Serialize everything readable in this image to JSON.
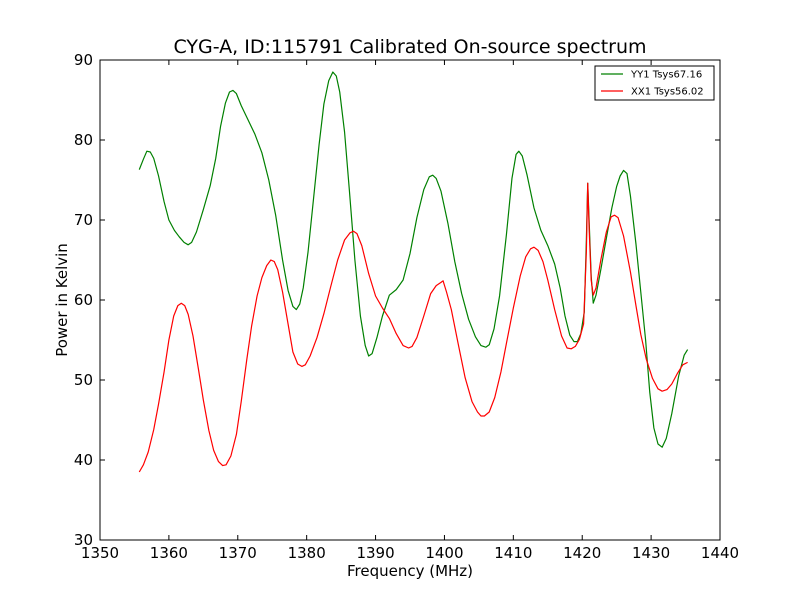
{
  "chart_data": {
    "type": "line",
    "title": "CYG-A, ID:115791 Calibrated On-source spectrum",
    "xlabel": "Frequency (MHz)",
    "ylabel": "Power in Kelvin",
    "xlim": [
      1350,
      1440
    ],
    "ylim": [
      30,
      90
    ],
    "xticks": [
      "1350",
      "1360",
      "1370",
      "1380",
      "1390",
      "1400",
      "1410",
      "1420",
      "1430",
      "1440"
    ],
    "yticks": [
      "30",
      "40",
      "50",
      "60",
      "70",
      "80",
      "90"
    ],
    "grid": false,
    "legend_position": "top-right",
    "series": [
      {
        "name": "YY1 Tsys67.16",
        "color": "#008000",
        "points": [
          [
            1355.7,
            76.3
          ],
          [
            1356.3,
            77.6
          ],
          [
            1356.8,
            78.6
          ],
          [
            1357.3,
            78.5
          ],
          [
            1357.8,
            77.7
          ],
          [
            1358.5,
            75.5
          ],
          [
            1359.3,
            72.3
          ],
          [
            1360.0,
            70.0
          ],
          [
            1360.8,
            68.7
          ],
          [
            1361.5,
            67.9
          ],
          [
            1362.2,
            67.2
          ],
          [
            1362.8,
            66.9
          ],
          [
            1363.3,
            67.2
          ],
          [
            1364.0,
            68.5
          ],
          [
            1365.0,
            71.3
          ],
          [
            1366.0,
            74.3
          ],
          [
            1366.8,
            77.7
          ],
          [
            1367.5,
            81.7
          ],
          [
            1368.2,
            84.6
          ],
          [
            1368.8,
            86.0
          ],
          [
            1369.3,
            86.2
          ],
          [
            1369.8,
            85.8
          ],
          [
            1370.5,
            84.3
          ],
          [
            1371.5,
            82.5
          ],
          [
            1372.5,
            80.7
          ],
          [
            1373.5,
            78.4
          ],
          [
            1374.5,
            75.0
          ],
          [
            1375.5,
            70.6
          ],
          [
            1376.5,
            65.0
          ],
          [
            1377.3,
            61.2
          ],
          [
            1378.0,
            59.2
          ],
          [
            1378.5,
            58.8
          ],
          [
            1379.0,
            59.5
          ],
          [
            1379.5,
            61.5
          ],
          [
            1380.2,
            66.0
          ],
          [
            1381.0,
            72.7
          ],
          [
            1381.8,
            79.4
          ],
          [
            1382.5,
            84.5
          ],
          [
            1383.2,
            87.4
          ],
          [
            1383.8,
            88.5
          ],
          [
            1384.3,
            88.0
          ],
          [
            1384.8,
            86.0
          ],
          [
            1385.5,
            81.0
          ],
          [
            1386.2,
            73.7
          ],
          [
            1387.0,
            65.0
          ],
          [
            1387.8,
            58.0
          ],
          [
            1388.5,
            54.3
          ],
          [
            1389.0,
            53.0
          ],
          [
            1389.5,
            53.3
          ],
          [
            1390.2,
            55.3
          ],
          [
            1391.0,
            58.0
          ],
          [
            1392.0,
            60.6
          ],
          [
            1393.0,
            61.3
          ],
          [
            1394.0,
            62.5
          ],
          [
            1395.0,
            65.8
          ],
          [
            1396.0,
            70.3
          ],
          [
            1397.0,
            73.8
          ],
          [
            1397.8,
            75.4
          ],
          [
            1398.3,
            75.6
          ],
          [
            1398.8,
            75.2
          ],
          [
            1399.5,
            73.6
          ],
          [
            1400.5,
            69.6
          ],
          [
            1401.5,
            64.8
          ],
          [
            1402.5,
            60.8
          ],
          [
            1403.5,
            57.6
          ],
          [
            1404.5,
            55.4
          ],
          [
            1405.3,
            54.3
          ],
          [
            1406.0,
            54.1
          ],
          [
            1406.5,
            54.4
          ],
          [
            1407.2,
            56.4
          ],
          [
            1408.0,
            60.5
          ],
          [
            1409.0,
            68.2
          ],
          [
            1409.8,
            75.2
          ],
          [
            1410.4,
            78.2
          ],
          [
            1410.8,
            78.6
          ],
          [
            1411.3,
            78.0
          ],
          [
            1412.0,
            75.6
          ],
          [
            1413.0,
            71.5
          ],
          [
            1414.0,
            68.7
          ],
          [
            1415.0,
            66.8
          ],
          [
            1416.0,
            64.5
          ],
          [
            1416.8,
            61.5
          ],
          [
            1417.5,
            58.0
          ],
          [
            1418.2,
            55.6
          ],
          [
            1418.8,
            54.8
          ],
          [
            1419.3,
            54.8
          ],
          [
            1419.8,
            55.8
          ],
          [
            1420.3,
            58.5
          ],
          [
            1420.6,
            67.5
          ],
          [
            1420.8,
            74.6
          ],
          [
            1421.0,
            70.0
          ],
          [
            1421.3,
            63.0
          ],
          [
            1421.6,
            59.6
          ],
          [
            1422.0,
            60.6
          ],
          [
            1422.7,
            63.8
          ],
          [
            1423.5,
            67.7
          ],
          [
            1424.3,
            71.5
          ],
          [
            1425.0,
            74.2
          ],
          [
            1425.5,
            75.5
          ],
          [
            1426.0,
            76.2
          ],
          [
            1426.5,
            75.8
          ],
          [
            1427.0,
            73.0
          ],
          [
            1427.8,
            67.0
          ],
          [
            1428.5,
            61.0
          ],
          [
            1429.2,
            55.0
          ],
          [
            1429.8,
            48.5
          ],
          [
            1430.4,
            44.0
          ],
          [
            1431.0,
            42.0
          ],
          [
            1431.6,
            41.6
          ],
          [
            1432.2,
            42.7
          ],
          [
            1433.0,
            45.8
          ],
          [
            1434.0,
            50.5
          ],
          [
            1434.8,
            53.1
          ],
          [
            1435.3,
            53.8
          ]
        ]
      },
      {
        "name": "XX1 Tsys56.02",
        "color": "#ff0000",
        "points": [
          [
            1355.7,
            38.5
          ],
          [
            1356.3,
            39.4
          ],
          [
            1357.0,
            41.0
          ],
          [
            1357.8,
            43.8
          ],
          [
            1358.5,
            47.0
          ],
          [
            1359.3,
            51.0
          ],
          [
            1360.0,
            55.0
          ],
          [
            1360.7,
            58.0
          ],
          [
            1361.3,
            59.3
          ],
          [
            1361.8,
            59.6
          ],
          [
            1362.3,
            59.3
          ],
          [
            1362.8,
            58.2
          ],
          [
            1363.5,
            55.5
          ],
          [
            1364.3,
            51.3
          ],
          [
            1365.0,
            47.5
          ],
          [
            1365.8,
            43.7
          ],
          [
            1366.5,
            41.2
          ],
          [
            1367.2,
            39.8
          ],
          [
            1367.8,
            39.3
          ],
          [
            1368.3,
            39.4
          ],
          [
            1369.0,
            40.5
          ],
          [
            1369.8,
            43.2
          ],
          [
            1370.5,
            47.3
          ],
          [
            1371.3,
            52.5
          ],
          [
            1372.0,
            56.7
          ],
          [
            1372.8,
            60.5
          ],
          [
            1373.5,
            62.8
          ],
          [
            1374.2,
            64.3
          ],
          [
            1374.8,
            65.0
          ],
          [
            1375.3,
            64.8
          ],
          [
            1375.8,
            63.8
          ],
          [
            1376.5,
            61.0
          ],
          [
            1377.3,
            57.0
          ],
          [
            1378.0,
            53.5
          ],
          [
            1378.7,
            52.0
          ],
          [
            1379.3,
            51.7
          ],
          [
            1379.8,
            51.9
          ],
          [
            1380.5,
            53.0
          ],
          [
            1381.5,
            55.3
          ],
          [
            1382.5,
            58.3
          ],
          [
            1383.5,
            61.7
          ],
          [
            1384.5,
            65.0
          ],
          [
            1385.5,
            67.5
          ],
          [
            1386.3,
            68.4
          ],
          [
            1386.8,
            68.6
          ],
          [
            1387.3,
            68.3
          ],
          [
            1388.0,
            66.8
          ],
          [
            1389.0,
            63.3
          ],
          [
            1390.0,
            60.5
          ],
          [
            1391.0,
            59.0
          ],
          [
            1392.0,
            57.7
          ],
          [
            1393.0,
            55.8
          ],
          [
            1394.0,
            54.3
          ],
          [
            1394.8,
            54.0
          ],
          [
            1395.3,
            54.2
          ],
          [
            1396.0,
            55.3
          ],
          [
            1397.0,
            58.0
          ],
          [
            1398.0,
            60.8
          ],
          [
            1398.8,
            61.8
          ],
          [
            1399.5,
            62.2
          ],
          [
            1399.8,
            62.4
          ],
          [
            1400.3,
            61.0
          ],
          [
            1401.0,
            58.8
          ],
          [
            1402.0,
            54.5
          ],
          [
            1403.0,
            50.3
          ],
          [
            1404.0,
            47.3
          ],
          [
            1404.8,
            46.0
          ],
          [
            1405.3,
            45.5
          ],
          [
            1405.8,
            45.5
          ],
          [
            1406.5,
            46.0
          ],
          [
            1407.3,
            47.8
          ],
          [
            1408.2,
            51.0
          ],
          [
            1409.0,
            54.6
          ],
          [
            1410.0,
            59.0
          ],
          [
            1411.0,
            63.0
          ],
          [
            1411.8,
            65.4
          ],
          [
            1412.5,
            66.4
          ],
          [
            1413.0,
            66.6
          ],
          [
            1413.6,
            66.2
          ],
          [
            1414.3,
            64.8
          ],
          [
            1415.0,
            62.5
          ],
          [
            1416.0,
            58.8
          ],
          [
            1417.0,
            55.5
          ],
          [
            1417.8,
            54.0
          ],
          [
            1418.4,
            53.9
          ],
          [
            1419.0,
            54.2
          ],
          [
            1419.6,
            55.1
          ],
          [
            1420.2,
            57.0
          ],
          [
            1420.6,
            66.0
          ],
          [
            1420.8,
            74.6
          ],
          [
            1421.0,
            69.0
          ],
          [
            1421.3,
            62.5
          ],
          [
            1421.6,
            60.6
          ],
          [
            1422.0,
            61.5
          ],
          [
            1422.7,
            65.0
          ],
          [
            1423.5,
            68.5
          ],
          [
            1424.2,
            70.4
          ],
          [
            1424.7,
            70.6
          ],
          [
            1425.2,
            70.3
          ],
          [
            1426.0,
            68.0
          ],
          [
            1427.0,
            63.5
          ],
          [
            1427.8,
            59.3
          ],
          [
            1428.5,
            55.7
          ],
          [
            1429.3,
            52.6
          ],
          [
            1430.2,
            50.2
          ],
          [
            1431.0,
            48.9
          ],
          [
            1431.6,
            48.6
          ],
          [
            1432.3,
            48.8
          ],
          [
            1433.0,
            49.5
          ],
          [
            1433.8,
            50.8
          ],
          [
            1434.6,
            51.9
          ],
          [
            1435.3,
            52.2
          ]
        ]
      }
    ]
  }
}
